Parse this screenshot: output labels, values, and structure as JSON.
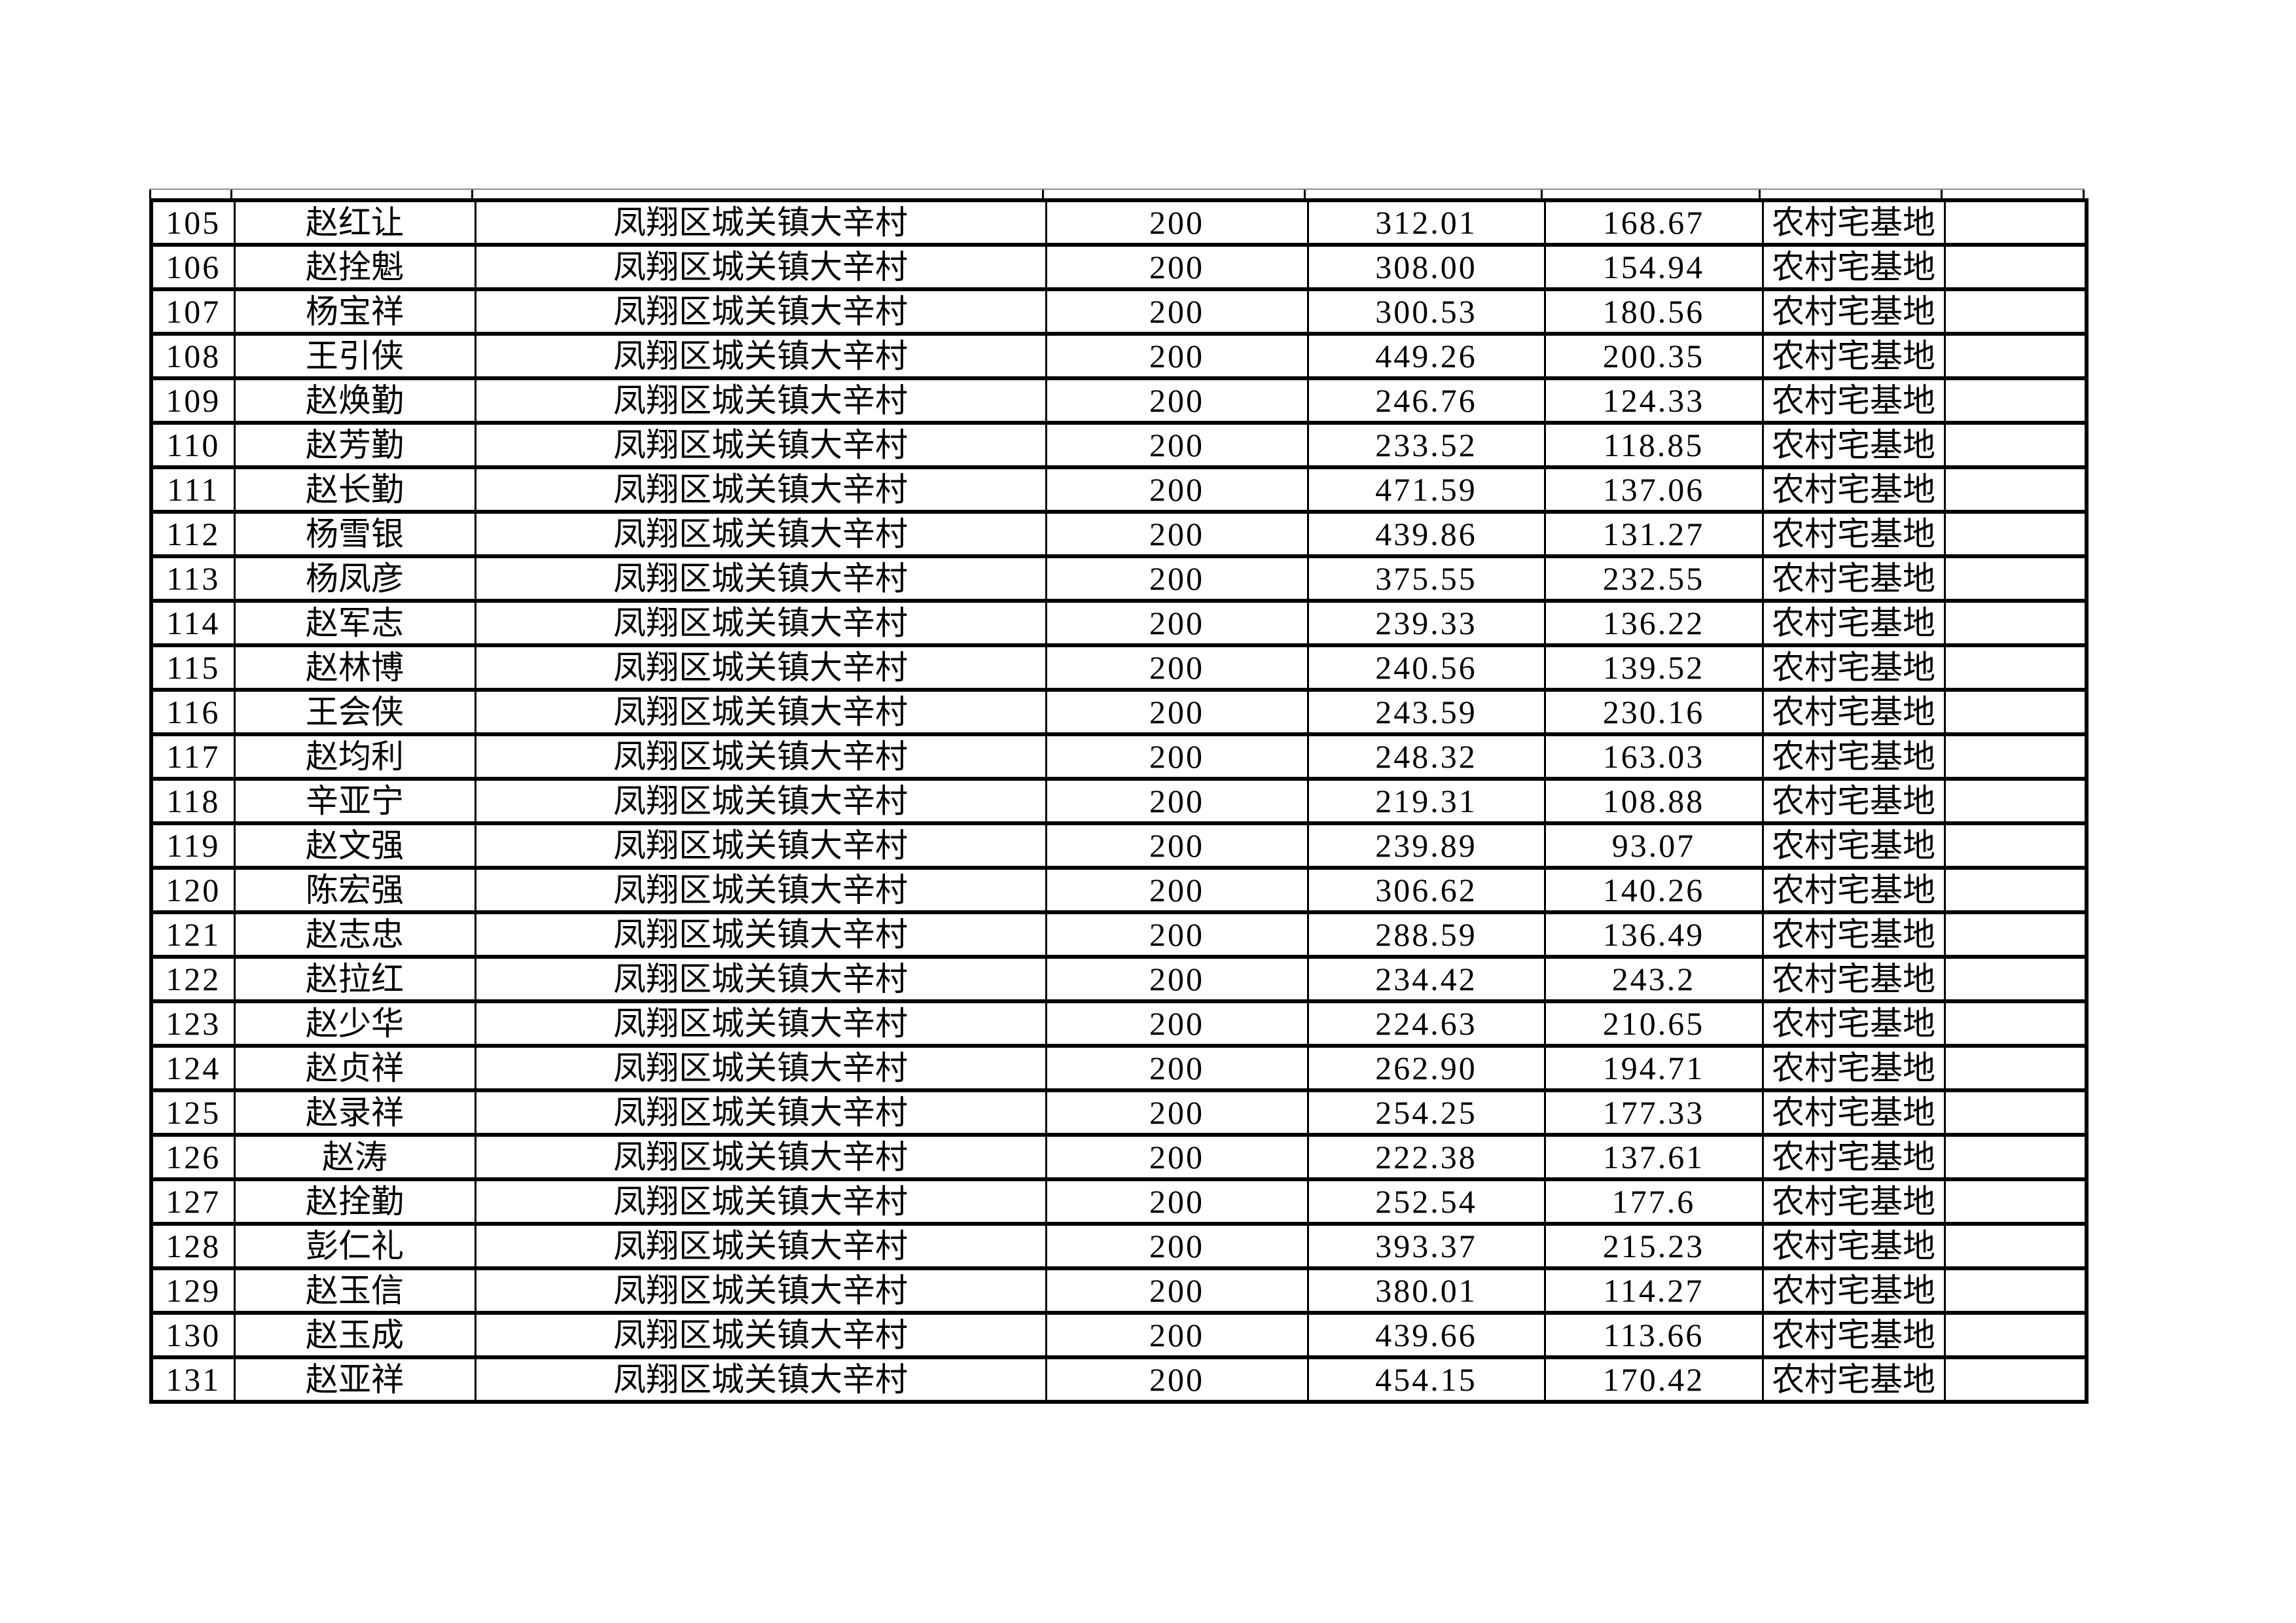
{
  "page": {
    "background": "#ffffff",
    "text_color": "#000000",
    "border_color": "#000000"
  },
  "table": {
    "rows": [
      [
        "105",
        "赵红让",
        "凤翔区城关镇大辛村",
        "200",
        "312.01",
        "168.67",
        "农村宅基地",
        ""
      ],
      [
        "106",
        "赵拴魁",
        "凤翔区城关镇大辛村",
        "200",
        "308.00",
        "154.94",
        "农村宅基地",
        ""
      ],
      [
        "107",
        "杨宝祥",
        "凤翔区城关镇大辛村",
        "200",
        "300.53",
        "180.56",
        "农村宅基地",
        ""
      ],
      [
        "108",
        "王引侠",
        "凤翔区城关镇大辛村",
        "200",
        "449.26",
        "200.35",
        "农村宅基地",
        ""
      ],
      [
        "109",
        "赵焕勤",
        "凤翔区城关镇大辛村",
        "200",
        "246.76",
        "124.33",
        "农村宅基地",
        ""
      ],
      [
        "110",
        "赵芳勤",
        "凤翔区城关镇大辛村",
        "200",
        "233.52",
        "118.85",
        "农村宅基地",
        ""
      ],
      [
        "111",
        "赵长勤",
        "凤翔区城关镇大辛村",
        "200",
        "471.59",
        "137.06",
        "农村宅基地",
        ""
      ],
      [
        "112",
        "杨雪银",
        "凤翔区城关镇大辛村",
        "200",
        "439.86",
        "131.27",
        "农村宅基地",
        ""
      ],
      [
        "113",
        "杨凤彦",
        "凤翔区城关镇大辛村",
        "200",
        "375.55",
        "232.55",
        "农村宅基地",
        ""
      ],
      [
        "114",
        "赵军志",
        "凤翔区城关镇大辛村",
        "200",
        "239.33",
        "136.22",
        "农村宅基地",
        ""
      ],
      [
        "115",
        "赵林博",
        "凤翔区城关镇大辛村",
        "200",
        "240.56",
        "139.52",
        "农村宅基地",
        ""
      ],
      [
        "116",
        "王会侠",
        "凤翔区城关镇大辛村",
        "200",
        "243.59",
        "230.16",
        "农村宅基地",
        ""
      ],
      [
        "117",
        "赵均利",
        "凤翔区城关镇大辛村",
        "200",
        "248.32",
        "163.03",
        "农村宅基地",
        ""
      ],
      [
        "118",
        "辛亚宁",
        "凤翔区城关镇大辛村",
        "200",
        "219.31",
        "108.88",
        "农村宅基地",
        ""
      ],
      [
        "119",
        "赵文强",
        "凤翔区城关镇大辛村",
        "200",
        "239.89",
        "93.07",
        "农村宅基地",
        ""
      ],
      [
        "120",
        "陈宏强",
        "凤翔区城关镇大辛村",
        "200",
        "306.62",
        "140.26",
        "农村宅基地",
        ""
      ],
      [
        "121",
        "赵志忠",
        "凤翔区城关镇大辛村",
        "200",
        "288.59",
        "136.49",
        "农村宅基地",
        ""
      ],
      [
        "122",
        "赵拉红",
        "凤翔区城关镇大辛村",
        "200",
        "234.42",
        "243.2",
        "农村宅基地",
        ""
      ],
      [
        "123",
        "赵少华",
        "凤翔区城关镇大辛村",
        "200",
        "224.63",
        "210.65",
        "农村宅基地",
        ""
      ],
      [
        "124",
        "赵贞祥",
        "凤翔区城关镇大辛村",
        "200",
        "262.90",
        "194.71",
        "农村宅基地",
        ""
      ],
      [
        "125",
        "赵录祥",
        "凤翔区城关镇大辛村",
        "200",
        "254.25",
        "177.33",
        "农村宅基地",
        ""
      ],
      [
        "126",
        "赵涛",
        "凤翔区城关镇大辛村",
        "200",
        "222.38",
        "137.61",
        "农村宅基地",
        ""
      ],
      [
        "127",
        "赵拴勤",
        "凤翔区城关镇大辛村",
        "200",
        "252.54",
        "177.6",
        "农村宅基地",
        ""
      ],
      [
        "128",
        "彭仁礼",
        "凤翔区城关镇大辛村",
        "200",
        "393.37",
        "215.23",
        "农村宅基地",
        ""
      ],
      [
        "129",
        "赵玉信",
        "凤翔区城关镇大辛村",
        "200",
        "380.01",
        "114.27",
        "农村宅基地",
        ""
      ],
      [
        "130",
        "赵玉成",
        "凤翔区城关镇大辛村",
        "200",
        "439.66",
        "113.66",
        "农村宅基地",
        ""
      ],
      [
        "131",
        "赵亚祥",
        "凤翔区城关镇大辛村",
        "200",
        "454.15",
        "170.42",
        "农村宅基地",
        ""
      ]
    ]
  }
}
